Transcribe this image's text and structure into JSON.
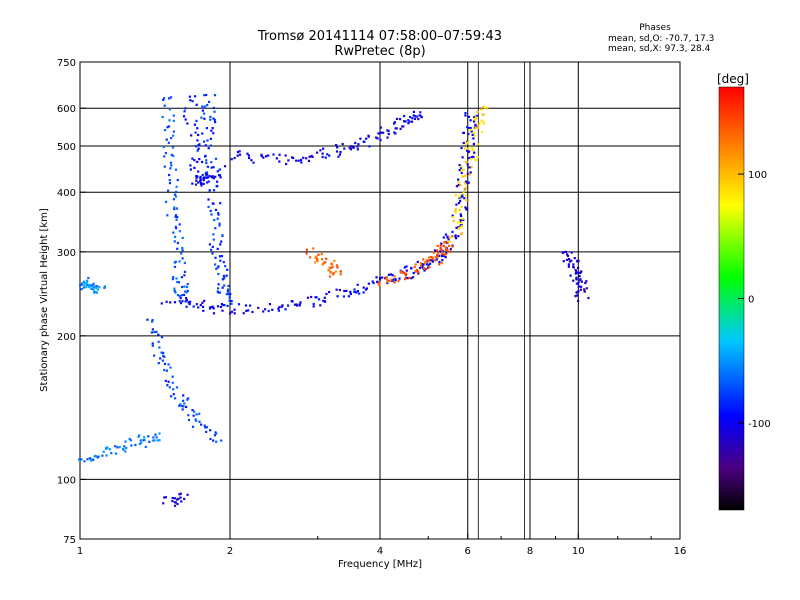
{
  "header": {
    "title_line1": "Tromsø 20141114 07:58:00–07:59:43",
    "title_line2": "RwPretec (8p)",
    "stats_title": "Phases",
    "stats_o": "mean, sd,O: -70.7, 17.3",
    "stats_x": "mean, sd,X:  97.3, 28.4"
  },
  "chart_data": {
    "type": "scatter",
    "title": "Tromsø 20141114 07:58:00–07:59:43",
    "subtitle": "RwPretec (8p)",
    "xlabel": "Frequency [MHz]",
    "ylabel": "Stationary phase Virtual Height [km]",
    "x_scale": "log",
    "y_scale": "log",
    "xlim": [
      1,
      16
    ],
    "ylim": [
      75,
      750
    ],
    "x_ticks": [
      1,
      2,
      4,
      6,
      8,
      10,
      16
    ],
    "x_tick_labels": [
      "1",
      "2",
      "4",
      "6",
      "8",
      "10",
      "16"
    ],
    "y_ticks": [
      75,
      100,
      200,
      300,
      400,
      500,
      600,
      750
    ],
    "y_tick_labels": [
      "75",
      "100",
      "200",
      "300",
      "400",
      "500",
      "600",
      "750"
    ],
    "grid": true,
    "grid_x": [
      2,
      4,
      6,
      8,
      10
    ],
    "grid_y": [
      100,
      200,
      300,
      400,
      500,
      600
    ],
    "extra_lines_x": [
      6.3,
      7.8
    ],
    "colorbar": {
      "label": "[deg]",
      "range": [
        -170,
        170
      ],
      "ticks": [
        100,
        0,
        -100
      ],
      "tick_labels": [
        "100",
        "0",
        "-100"
      ]
    },
    "traces": [
      {
        "points": [
          [
            1.5,
            240
          ],
          [
            1.75,
            232
          ],
          [
            2.0,
            228
          ],
          [
            2.5,
            232
          ],
          [
            3.0,
            238
          ],
          [
            3.5,
            250
          ],
          [
            4.0,
            262
          ],
          [
            4.5,
            272
          ],
          [
            5.0,
            285
          ],
          [
            5.3,
            300
          ],
          [
            5.6,
            330
          ],
          [
            5.8,
            380
          ],
          [
            5.9,
            450
          ],
          [
            6.0,
            520
          ],
          [
            6.1,
            600
          ]
        ],
        "phase": -100
      },
      {
        "points": [
          [
            2.0,
            480
          ],
          [
            2.5,
            470
          ],
          [
            3.0,
            478
          ],
          [
            3.5,
            500
          ],
          [
            4.0,
            530
          ],
          [
            4.5,
            570
          ],
          [
            4.8,
            590
          ]
        ],
        "phase": -100
      },
      {
        "points": [
          [
            1.5,
            640
          ],
          [
            1.5,
            500
          ],
          [
            1.52,
            400
          ],
          [
            1.55,
            320
          ],
          [
            1.58,
            260
          ],
          [
            1.6,
            240
          ]
        ],
        "phase": -70
      },
      {
        "points": [
          [
            1.8,
            640
          ],
          [
            1.8,
            560
          ],
          [
            1.82,
            450
          ],
          [
            1.85,
            360
          ],
          [
            1.88,
            300
          ],
          [
            1.92,
            260
          ],
          [
            1.95,
            235
          ]
        ],
        "phase": -80
      },
      {
        "points": [
          [
            1.65,
            640
          ],
          [
            1.68,
            500
          ],
          [
            1.72,
            420
          ],
          [
            1.78,
            430
          ],
          [
            1.9,
            450
          ]
        ],
        "phase": -95
      },
      {
        "points": [
          [
            4.0,
            262
          ],
          [
            4.5,
            270
          ],
          [
            5.0,
            285
          ],
          [
            5.3,
            300
          ],
          [
            5.5,
            320
          ]
        ],
        "phase": 140
      },
      {
        "points": [
          [
            5.6,
            320
          ],
          [
            5.8,
            380
          ],
          [
            6.0,
            460
          ],
          [
            6.2,
            540
          ],
          [
            6.4,
            620
          ]
        ],
        "phase": 90
      },
      {
        "points": [
          [
            2.9,
            300
          ],
          [
            3.1,
            285
          ],
          [
            3.3,
            270
          ]
        ],
        "phase": 130
      },
      {
        "points": [
          [
            1.0,
            260
          ],
          [
            1.05,
            255
          ],
          [
            1.1,
            250
          ]
        ],
        "phase": -50
      },
      {
        "points": [
          [
            1.4,
            215
          ],
          [
            1.45,
            180
          ],
          [
            1.55,
            150
          ],
          [
            1.7,
            135
          ],
          [
            1.9,
            120
          ]
        ],
        "phase": -75
      },
      {
        "points": [
          [
            1.0,
            110
          ],
          [
            1.15,
            115
          ],
          [
            1.3,
            120
          ],
          [
            1.45,
            125
          ]
        ],
        "phase": -60
      },
      {
        "points": [
          [
            9.5,
            300
          ],
          [
            9.8,
            280
          ],
          [
            10.0,
            260
          ],
          [
            10.2,
            240
          ]
        ],
        "phase": -110
      },
      {
        "points": [
          [
            1.5,
            90
          ],
          [
            1.6,
            92
          ]
        ],
        "phase": -110
      }
    ]
  }
}
